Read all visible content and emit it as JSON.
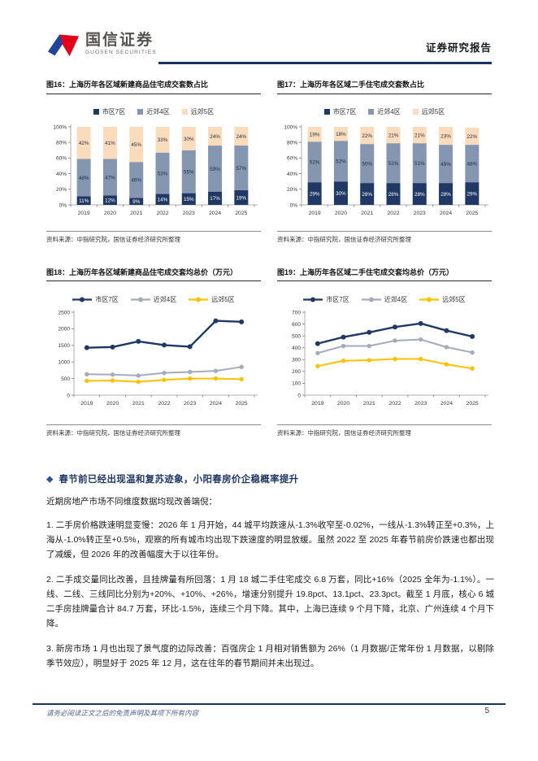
{
  "header": {
    "logo_title": "国信证券",
    "logo_subtitle": "GUOSEN SECURITIES",
    "report_type": "证券研究报告"
  },
  "colors": {
    "navy": "#1f3864",
    "gray_blue": "#8496b0",
    "peach": "#fadcbc",
    "line_gray": "#a3acbc",
    "gold": "#ffc000",
    "rule_navy": "#17365d"
  },
  "source_note": "资料来源：中指研究院，国信证券经济研究所整理",
  "chart_data": [
    {
      "type": "bar",
      "stacked": true,
      "title": "图16：上海历年各区域新建商品住宅成交套数占比",
      "categories": [
        "2019",
        "2020",
        "2021",
        "2022",
        "2023",
        "2024",
        "2025"
      ],
      "series": [
        {
          "name": "市区7区",
          "color": "#1f3864",
          "values": [
            11,
            12,
            9,
            14,
            15,
            17,
            19
          ]
        },
        {
          "name": "近郊4区",
          "color": "#8496b0",
          "values": [
            48,
            47,
            46,
            53,
            55,
            59,
            57
          ]
        },
        {
          "name": "远郊5区",
          "color": "#fadcbc",
          "values": [
            42,
            41,
            45,
            33,
            30,
            24,
            24
          ]
        }
      ],
      "ylim": [
        0,
        100
      ],
      "yticks": [
        0,
        20,
        40,
        60,
        80,
        100
      ],
      "ytick_suffix": "%",
      "value_suffix": "%",
      "legend_position": "top",
      "grid": false
    },
    {
      "type": "bar",
      "stacked": true,
      "title": "图17：上海历年各区域二手住宅成交套数占比",
      "categories": [
        "2019",
        "2020",
        "2021",
        "2022",
        "2023",
        "2024",
        "2025"
      ],
      "series": [
        {
          "name": "市区7区",
          "color": "#1f3864",
          "values": [
            29,
            30,
            28,
            28,
            28,
            28,
            29
          ]
        },
        {
          "name": "近郊4区",
          "color": "#8496b0",
          "values": [
            52,
            52,
            50,
            51,
            51,
            49,
            48
          ]
        },
        {
          "name": "远郊5区",
          "color": "#fadcbc",
          "values": [
            19,
            18,
            22,
            21,
            21,
            23,
            22
          ]
        }
      ],
      "ylim": [
        0,
        100
      ],
      "yticks": [
        0,
        20,
        40,
        60,
        80,
        100
      ],
      "ytick_suffix": "%",
      "value_suffix": "%",
      "legend_position": "top",
      "grid": false
    },
    {
      "type": "line",
      "title": "图18：上海历年各区域新建商品住宅成交套均总价（万元）",
      "categories": [
        "2019",
        "2020",
        "2021",
        "2022",
        "2023",
        "2024",
        "2025"
      ],
      "series": [
        {
          "name": "市区7区",
          "color": "#1f3864",
          "values": [
            1430,
            1450,
            1620,
            1510,
            1460,
            2240,
            2210
          ]
        },
        {
          "name": "近郊4区",
          "color": "#a3acbc",
          "values": [
            630,
            620,
            590,
            670,
            700,
            730,
            850
          ]
        },
        {
          "name": "远郊5区",
          "color": "#ffc000",
          "values": [
            430,
            440,
            400,
            460,
            500,
            500,
            480
          ]
        }
      ],
      "ylim": [
        0,
        2500
      ],
      "yticks": [
        0,
        500,
        1000,
        1500,
        2000,
        2500
      ],
      "ytick_suffix": "",
      "legend_position": "top",
      "grid": false
    },
    {
      "type": "line",
      "title": "图19：上海历年各区域二手住宅成交套均总价（万元）",
      "categories": [
        "2019",
        "2020",
        "2021",
        "2022",
        "2023",
        "2024",
        "2025"
      ],
      "series": [
        {
          "name": "市区7区",
          "color": "#1f3864",
          "values": [
            435,
            490,
            530,
            575,
            605,
            545,
            495
          ]
        },
        {
          "name": "近郊4区",
          "color": "#a3acbc",
          "values": [
            355,
            415,
            415,
            460,
            470,
            405,
            360
          ]
        },
        {
          "name": "远郊5区",
          "color": "#ffc000",
          "values": [
            245,
            290,
            295,
            305,
            305,
            260,
            225
          ]
        }
      ],
      "ylim": [
        0,
        700
      ],
      "yticks": [
        0,
        100,
        200,
        300,
        400,
        500,
        600,
        700
      ],
      "ytick_suffix": "",
      "legend_position": "top",
      "grid": false
    }
  ],
  "section": {
    "bullet_icon": "◆",
    "heading": "春节前已经出现温和复苏迹象，小阳春房价企稳概率提升",
    "intro": "近期房地产市场不同维度数据均现改善端倪：",
    "paragraphs": [
      "1.  二手房价格跌速明显变慢：2026 年 1 月开始，44 城平均跌速从-1.3%收窄至-0.02%，一线从-1.3%转正至+0.3%，上海从-1.0%转正至+0.5%，观察的所有城市均出现下跌速度的明显放缓。虽然 2022 至 2025 年春节前房价跌速也都出现了减缓，但 2026 年的改善幅度大于以往年份。",
      "2.  二手成交量同比改善，且挂牌量有所回落：1 月 18 城二手住宅成交 6.8 万套，同比+16%（2025 全年为-1.1%）。一线、二线、三线同比分别为+20%、+10%、+26%，增速分别提升 19.8pct、13.1pct、23.3pct。截至 1 月底，核心 6 城二手房挂牌量合计 84.7 万套，环比-1.5%，连续三个月下降。其中，上海已连续 9 个月下降，北京、广州连续 4 个月下降。",
      "3.  新房市场 1 月也出现了景气度的边际改善：百强房企 1 月相对销售额为 26%（1 月数据/正常年份 1 月数据，以剔除季节效应），明显好于 2025 年 12 月，这在往年的春节期间并未出现过。"
    ]
  },
  "footer": {
    "disclaimer": "请务必阅读正文之后的免责声明及其项下所有内容",
    "page_number": "5"
  }
}
